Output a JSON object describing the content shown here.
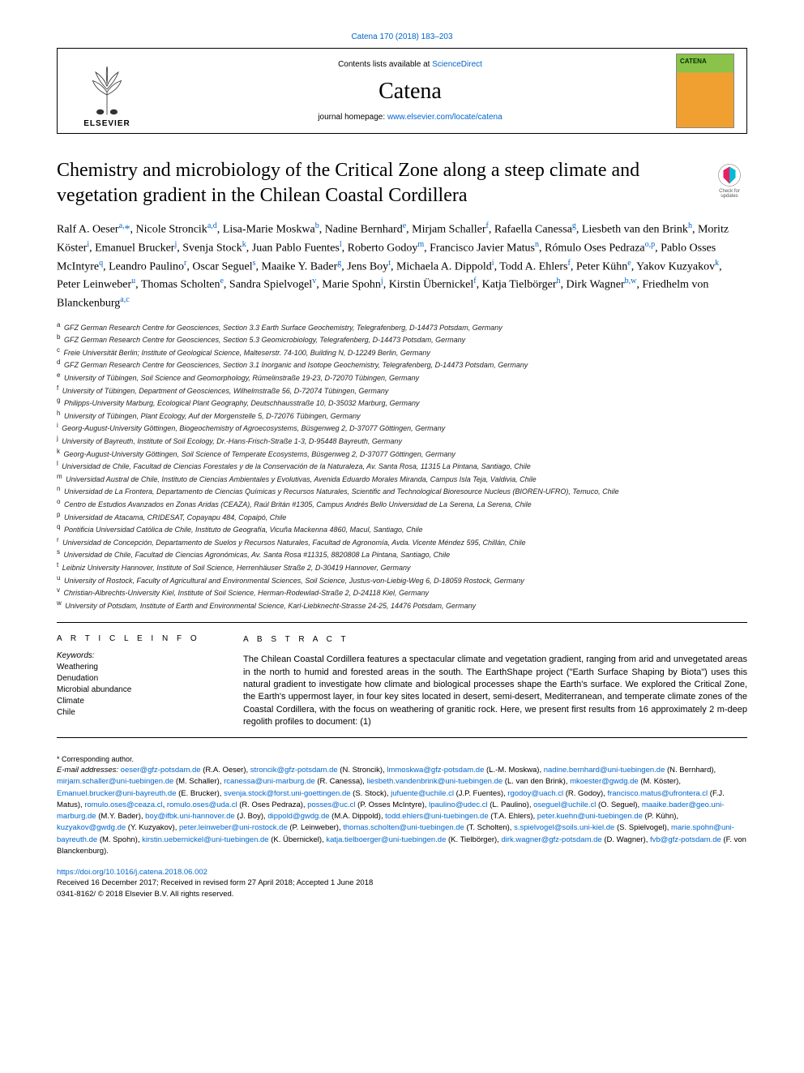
{
  "top_ref": {
    "prefix": "Catena 170 (2018) 183–203"
  },
  "header": {
    "contents_prefix": "Contents lists available at ",
    "contents_link": "ScienceDirect",
    "journal": "Catena",
    "homepage_prefix": "journal homepage: ",
    "homepage_link": "www.elsevier.com/locate/catena",
    "publisher": "ELSEVIER"
  },
  "check_updates": "Check for updates",
  "title": "Chemistry and microbiology of the Critical Zone along a steep climate and vegetation gradient in the Chilean Coastal Cordillera",
  "authors_html": "Ralf A. Oeser<sup>a,</sup><span class='corr'>*</span>, Nicole Stroncik<sup>a,d</sup>, Lisa-Marie Moskwa<sup>b</sup>, Nadine Bernhard<sup>e</sup>, Mirjam Schaller<sup>f</sup>, Rafaella Canessa<sup>g</sup>, Liesbeth van den Brink<sup>h</sup>, Moritz Köster<sup>i</sup>, Emanuel Brucker<sup>j</sup>, Svenja Stock<sup>k</sup>, Juan Pablo Fuentes<sup>l</sup>, Roberto Godoy<sup>m</sup>, Francisco Javier Matus<sup>n</sup>, Rómulo Oses Pedraza<sup>o,p</sup>, Pablo Osses McIntyre<sup>q</sup>, Leandro Paulino<sup>r</sup>, Oscar Seguel<sup>s</sup>, Maaike Y. Bader<sup>g</sup>, Jens Boy<sup>t</sup>, Michaela A. Dippold<sup>i</sup>, Todd A. Ehlers<sup>f</sup>, Peter Kühn<sup>e</sup>, Yakov Kuzyakov<sup>k</sup>, Peter Leinweber<sup>u</sup>, Thomas Scholten<sup>e</sup>, Sandra Spielvogel<sup>v</sup>, Marie Spohn<sup>j</sup>, Kirstin Übernickel<sup>f</sup>, Katja Tielbörger<sup>h</sup>, Dirk Wagner<sup>b,w</sup>, Friedhelm von Blanckenburg<sup>a,c</sup>",
  "affiliations": [
    {
      "k": "a",
      "t": "GFZ German Research Centre for Geosciences, Section 3.3 Earth Surface Geochemistry, Telegrafenberg, D-14473 Potsdam, Germany"
    },
    {
      "k": "b",
      "t": "GFZ German Research Centre for Geosciences, Section 5.3 Geomicrobiology, Telegrafenberg, D-14473 Potsdam, Germany"
    },
    {
      "k": "c",
      "t": "Freie Universität Berlin; Institute of Geological Science, Malteserstr. 74-100, Building N, D-12249 Berlin, Germany"
    },
    {
      "k": "d",
      "t": "GFZ German Research Centre for Geosciences, Section 3.1 Inorganic and Isotope Geochemistry, Telegrafenberg, D-14473 Potsdam, Germany"
    },
    {
      "k": "e",
      "t": "University of Tübingen, Soil Science and Geomorphology, Rümelinstraße 19-23, D-72070 Tübingen, Germany"
    },
    {
      "k": "f",
      "t": "University of Tübingen, Department of Geosciences, Wilhelmstraße 56, D-72074 Tübingen, Germany"
    },
    {
      "k": "g",
      "t": "Philipps-University Marburg, Ecological Plant Geography, Deutschhausstraße 10, D-35032 Marburg, Germany"
    },
    {
      "k": "h",
      "t": "University of Tübingen, Plant Ecology, Auf der Morgenstelle 5, D-72076 Tübingen, Germany"
    },
    {
      "k": "i",
      "t": "Georg-August-University Göttingen, Biogeochemistry of Agroecosystems, Büsgenweg 2, D-37077 Göttingen, Germany"
    },
    {
      "k": "j",
      "t": "University of Bayreuth, Institute of Soil Ecology, Dr.-Hans-Frisch-Straße 1-3, D-95448 Bayreuth, Germany"
    },
    {
      "k": "k",
      "t": "Georg-August-University Göttingen, Soil Science of Temperate Ecosystems, Büsgenweg 2, D-37077 Göttingen, Germany"
    },
    {
      "k": "l",
      "t": "Universidad de Chile, Facultad de Ciencias Forestales y de la Conservación de la Naturaleza, Av. Santa Rosa, 11315 La Pintana, Santiago, Chile"
    },
    {
      "k": "m",
      "t": "Universidad Austral de Chile, Instituto de Ciencias Ambientales y Evolutivas, Avenida Eduardo Morales Miranda, Campus Isla Teja, Valdivia, Chile"
    },
    {
      "k": "n",
      "t": "Universidad de La Frontera, Departamento de Ciencias Químicas y Recursos Naturales, Scientific and Technological Bioresource Nucleus (BIOREN-UFRO), Temuco, Chile"
    },
    {
      "k": "o",
      "t": "Centro de Estudios Avanzados en Zonas Aridas (CEAZA), Raúl Britán #1305, Campus Andrés Bello Universidad de La Serena, La Serena, Chile"
    },
    {
      "k": "p",
      "t": "Universidad de Atacama, CRIDESAT, Copayapu 484, Copaipó, Chile"
    },
    {
      "k": "q",
      "t": "Pontificia Universidad Católica de Chile, Instituto de Geografía, Vicuña Mackenna 4860, Macul, Santiago, Chile"
    },
    {
      "k": "r",
      "t": "Universidad de Concepción, Departamento de Suelos y Recursos Naturales, Facultad de Agronomía, Avda. Vicente Méndez 595, Chillán, Chile"
    },
    {
      "k": "s",
      "t": "Universidad de Chile, Facultad de Ciencias Agronómicas, Av. Santa Rosa #11315, 8820808 La Pintana, Santiago, Chile"
    },
    {
      "k": "t",
      "t": "Leibniz University Hannover, Institute of Soil Science, Herrenhäuser Straße 2, D-30419 Hannover, Germany"
    },
    {
      "k": "u",
      "t": "University of Rostock, Faculty of Agricultural and Environmental Sciences, Soil Science, Justus-von-Liebig-Weg 6, D-18059 Rostock, Germany"
    },
    {
      "k": "v",
      "t": "Christian-Albrechts-University Kiel, Institute of Soil Science, Herman-Rodewlad-Straße 2, D-24118 Kiel, Germany"
    },
    {
      "k": "w",
      "t": "University of Potsdam, Institute of Earth and Environmental Science, Karl-Liebknecht-Strasse 24-25, 14476 Potsdam, Germany"
    }
  ],
  "info": {
    "head": "A R T I C L E  I N F O",
    "kw_label": "Keywords:",
    "keywords": [
      "Weathering",
      "Denudation",
      "Microbial abundance",
      "Climate",
      "Chile"
    ]
  },
  "abstract": {
    "head": "A B S T R A C T",
    "text": "The Chilean Coastal Cordillera features a spectacular climate and vegetation gradient, ranging from arid and unvegetated areas in the north to humid and forested areas in the south. The EarthShape project (\"Earth Surface Shaping by Biota\") uses this natural gradient to investigate how climate and biological processes shape the Earth's surface. We explored the Critical Zone, the Earth's uppermost layer, in four key sites located in desert, semi-desert, Mediterranean, and temperate climate zones of the Coastal Cordillera, with the focus on weathering of granitic rock. Here, we present first results from 16 approximately 2 m-deep regolith profiles to document: (1)"
  },
  "footnotes": {
    "corr": "* Corresponding author.",
    "email_label": "E-mail addresses: ",
    "emails": [
      {
        "e": "oeser@gfz-potsdam.de",
        "n": "(R.A. Oeser)"
      },
      {
        "e": "stroncik@gfz-potsdam.de",
        "n": "(N. Stroncik)"
      },
      {
        "e": "lmmoskwa@gfz-potsdam.de",
        "n": "(L.-M. Moskwa)"
      },
      {
        "e": "nadine.bernhard@uni-tuebingen.de",
        "n": "(N. Bernhard)"
      },
      {
        "e": "mirjam.schaller@uni-tuebingen.de",
        "n": "(M. Schaller)"
      },
      {
        "e": "rcanessa@uni-marburg.de",
        "n": "(R. Canessa)"
      },
      {
        "e": "liesbeth.vandenbrink@uni-tuebingen.de",
        "n": "(L. van den Brink)"
      },
      {
        "e": "mkoester@gwdg.de",
        "n": "(M. Köster)"
      },
      {
        "e": "Emanuel.brucker@uni-bayreuth.de",
        "n": "(E. Brucker)"
      },
      {
        "e": "svenja.stock@forst.uni-goettingen.de",
        "n": "(S. Stock)"
      },
      {
        "e": "jufuente@uchile.cl",
        "n": "(J.P. Fuentes)"
      },
      {
        "e": "rgodoy@uach.cl",
        "n": "(R. Godoy)"
      },
      {
        "e": "francisco.matus@ufrontera.cl",
        "n": "(F.J. Matus)"
      },
      {
        "e": "romulo.oses@ceaza.cl",
        "n": ""
      },
      {
        "e": "romulo.oses@uda.cl",
        "n": "(R. Oses Pedraza)"
      },
      {
        "e": "posses@uc.cl",
        "n": "(P. Osses McIntyre)"
      },
      {
        "e": "lpaulino@udec.cl",
        "n": "(L. Paulino)"
      },
      {
        "e": "oseguel@uchile.cl",
        "n": "(O. Seguel)"
      },
      {
        "e": "maaike.bader@geo.uni-marburg.de",
        "n": "(M.Y. Bader)"
      },
      {
        "e": "boy@ifbk.uni-hannover.de",
        "n": "(J. Boy)"
      },
      {
        "e": "dippold@gwdg.de",
        "n": "(M.A. Dippold)"
      },
      {
        "e": "todd.ehlers@uni-tuebingen.de",
        "n": "(T.A. Ehlers)"
      },
      {
        "e": "peter.kuehn@uni-tuebingen.de",
        "n": "(P. Kühn)"
      },
      {
        "e": "kuzyakov@gwdg.de",
        "n": "(Y. Kuzyakov)"
      },
      {
        "e": "peter.leinweber@uni-rostock.de",
        "n": "(P. Leinweber)"
      },
      {
        "e": "thomas.scholten@uni-tuebingen.de",
        "n": "(T. Scholten)"
      },
      {
        "e": "s.spielvogel@soils.uni-kiel.de",
        "n": "(S. Spielvogel)"
      },
      {
        "e": "marie.spohn@uni-bayreuth.de",
        "n": "(M. Spohn)"
      },
      {
        "e": "kirstin.uebernickel@uni-tuebingen.de",
        "n": "(K. Übernickel)"
      },
      {
        "e": "katja.tielboerger@uni-tuebingen.de",
        "n": "(K. Tielbörger)"
      },
      {
        "e": "dirk.wagner@gfz-potsdam.de",
        "n": "(D. Wagner)"
      },
      {
        "e": "fvb@gfz-potsdam.de",
        "n": "(F. von Blanckenburg)."
      }
    ]
  },
  "doi": {
    "link": "https://doi.org/10.1016/j.catena.2018.06.002",
    "received": "Received 16 December 2017; Received in revised form 27 April 2018; Accepted 1 June 2018",
    "copyright": "0341-8162/ © 2018 Elsevier B.V. All rights reserved."
  },
  "colors": {
    "link": "#0066cc",
    "text": "#000000",
    "cover_top": "#8bc34a",
    "cover_bottom": "#f0a030"
  }
}
